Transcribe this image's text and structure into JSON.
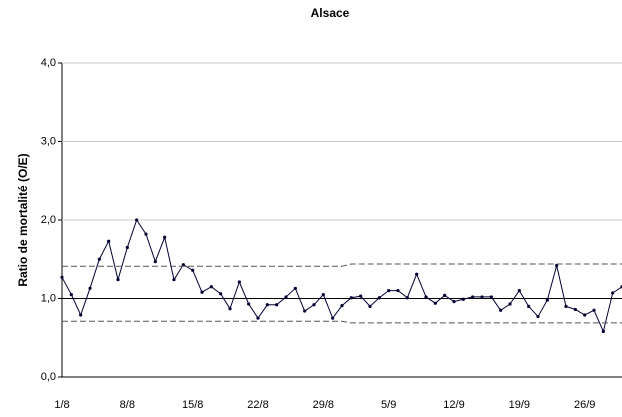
{
  "chart_data": {
    "type": "line",
    "title": "Alsace",
    "y_label": "Ratio de mortalité (O/E)",
    "categories": [
      "1/8",
      null,
      null,
      null,
      null,
      null,
      null,
      "8/8",
      null,
      null,
      null,
      null,
      null,
      null,
      "15/8",
      null,
      null,
      null,
      null,
      null,
      null,
      "22/8",
      null,
      null,
      null,
      null,
      null,
      null,
      "29/8",
      null,
      null,
      null,
      null,
      null,
      null,
      "5/9",
      null,
      null,
      null,
      null,
      null,
      null,
      "12/9",
      null,
      null,
      null,
      null,
      null,
      null,
      "19/9",
      null,
      null,
      null,
      null,
      null,
      null,
      "26/9",
      null,
      null,
      null,
      null
    ],
    "series": [
      {
        "color": "#000033",
        "markers": true,
        "dashed": false,
        "values": [
          1.27,
          1.05,
          0.79,
          1.13,
          1.5,
          1.73,
          1.24,
          1.65,
          2.0,
          1.82,
          1.47,
          1.78,
          1.24,
          1.43,
          1.36,
          1.08,
          1.15,
          1.06,
          0.87,
          1.21,
          0.93,
          0.75,
          0.92,
          0.92,
          1.02,
          1.13,
          0.84,
          0.92,
          1.05,
          0.75,
          0.91,
          1.01,
          1.03,
          0.9,
          1.01,
          1.1,
          1.1,
          1.01,
          1.31,
          1.02,
          0.94,
          1.04,
          0.96,
          0.99,
          1.02,
          1.02,
          1.02,
          0.85,
          0.93,
          1.1,
          0.9,
          0.77,
          0.98,
          1.42,
          0.9,
          0.86,
          0.79,
          0.85,
          0.58,
          1.07,
          1.15
        ]
      },
      {
        "color": "#555555",
        "markers": false,
        "dashed": true,
        "values": [
          1.41,
          1.41,
          1.41,
          1.41,
          1.41,
          1.41,
          1.41,
          1.41,
          1.41,
          1.41,
          1.41,
          1.41,
          1.41,
          1.41,
          1.41,
          1.41,
          1.41,
          1.41,
          1.41,
          1.41,
          1.41,
          1.41,
          1.41,
          1.41,
          1.41,
          1.41,
          1.41,
          1.41,
          1.41,
          1.41,
          1.41,
          1.44,
          1.44,
          1.44,
          1.44,
          1.44,
          1.44,
          1.44,
          1.44,
          1.44,
          1.44,
          1.44,
          1.44,
          1.44,
          1.44,
          1.44,
          1.44,
          1.44,
          1.44,
          1.44,
          1.44,
          1.44,
          1.44,
          1.44,
          1.44,
          1.44,
          1.44,
          1.44,
          1.44,
          1.44,
          1.44
        ]
      },
      {
        "color": "#555555",
        "markers": false,
        "dashed": true,
        "values": [
          0.71,
          0.71,
          0.71,
          0.71,
          0.71,
          0.71,
          0.71,
          0.71,
          0.71,
          0.71,
          0.71,
          0.71,
          0.71,
          0.71,
          0.71,
          0.71,
          0.71,
          0.71,
          0.71,
          0.71,
          0.71,
          0.71,
          0.71,
          0.71,
          0.71,
          0.71,
          0.71,
          0.71,
          0.71,
          0.71,
          0.71,
          0.69,
          0.69,
          0.69,
          0.69,
          0.69,
          0.69,
          0.69,
          0.69,
          0.69,
          0.69,
          0.69,
          0.69,
          0.69,
          0.69,
          0.69,
          0.69,
          0.69,
          0.69,
          0.69,
          0.69,
          0.69,
          0.69,
          0.69,
          0.69,
          0.69,
          0.69,
          0.69,
          0.69,
          0.69,
          0.69
        ]
      }
    ],
    "reference_line": 1,
    "ylim": [
      0,
      4
    ],
    "yticks": [
      {
        "value": 0,
        "label": "0,0"
      },
      {
        "value": 1,
        "label": "1,0"
      },
      {
        "value": 2,
        "label": "2,0"
      },
      {
        "value": 3,
        "label": "3,0"
      },
      {
        "value": 4,
        "label": "4,0"
      }
    ],
    "grid": true
  }
}
